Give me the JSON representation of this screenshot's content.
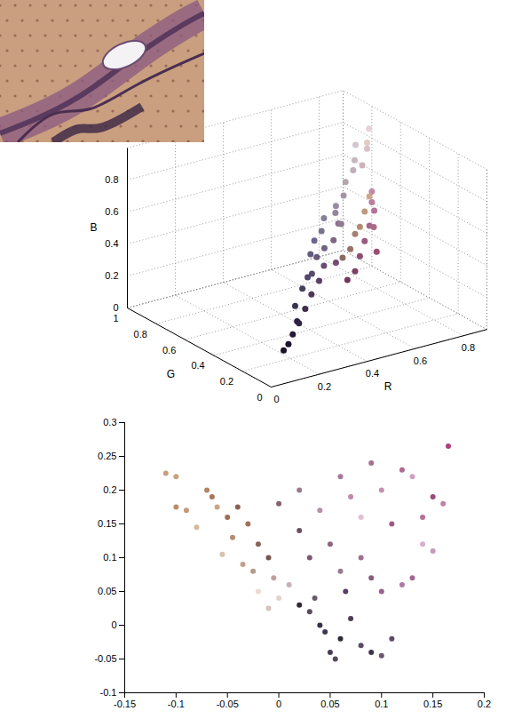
{
  "chart_data": [
    {
      "type": "scatter3d",
      "x_label": "R",
      "y_label": "G",
      "z_label": "B",
      "xlim": [
        0,
        0.9
      ],
      "xticks": [
        0,
        0.2,
        0.4,
        0.6,
        0.8
      ],
      "ylim": [
        0,
        1
      ],
      "yticks": [
        0,
        0.2,
        0.4,
        0.6,
        0.8,
        1
      ],
      "zlim": [
        0,
        1
      ],
      "zticks": [
        0,
        0.2,
        0.4,
        0.6,
        0.8
      ],
      "grid": true,
      "x": [
        0.12,
        0.15,
        0.2,
        0.1,
        0.18,
        0.25,
        0.22,
        0.3,
        0.28,
        0.35,
        0.4,
        0.45,
        0.38,
        0.5,
        0.48,
        0.55,
        0.42,
        0.52,
        0.55,
        0.6,
        0.65,
        0.7,
        0.62,
        0.72,
        0.75,
        0.5,
        0.45,
        0.68,
        0.6,
        0.7,
        0.75,
        0.8,
        0.55,
        0.65,
        0.8,
        0.85,
        0.82,
        0.88,
        0.78,
        0.9,
        0.7,
        0.75,
        0.6,
        0.65,
        0.58,
        0.35,
        0.32,
        0.4,
        0.45,
        0.58
      ],
      "y": [
        0.08,
        0.1,
        0.14,
        0.08,
        0.12,
        0.18,
        0.2,
        0.22,
        0.25,
        0.25,
        0.35,
        0.38,
        0.36,
        0.4,
        0.45,
        0.45,
        0.4,
        0.5,
        0.3,
        0.35,
        0.4,
        0.45,
        0.3,
        0.5,
        0.55,
        0.25,
        0.22,
        0.42,
        0.45,
        0.55,
        0.6,
        0.65,
        0.42,
        0.5,
        0.7,
        0.75,
        0.78,
        0.8,
        0.72,
        0.82,
        0.65,
        0.68,
        0.55,
        0.58,
        0.52,
        0.3,
        0.28,
        0.3,
        0.3,
        0.48
      ],
      "z": [
        0.18,
        0.22,
        0.25,
        0.15,
        0.28,
        0.3,
        0.32,
        0.35,
        0.38,
        0.4,
        0.48,
        0.5,
        0.5,
        0.52,
        0.56,
        0.58,
        0.55,
        0.6,
        0.45,
        0.5,
        0.55,
        0.6,
        0.45,
        0.62,
        0.65,
        0.4,
        0.38,
        0.52,
        0.4,
        0.45,
        0.5,
        0.55,
        0.38,
        0.45,
        0.72,
        0.78,
        0.8,
        0.78,
        0.75,
        0.85,
        0.68,
        0.72,
        0.62,
        0.65,
        0.6,
        0.42,
        0.42,
        0.45,
        0.45,
        0.55
      ]
    },
    {
      "type": "scatter",
      "xlim": [
        -0.15,
        0.2
      ],
      "xticks": [
        -0.15,
        -0.1,
        -0.05,
        0,
        0.05,
        0.1,
        0.15,
        0.2
      ],
      "ylim": [
        -0.1,
        0.3
      ],
      "yticks": [
        -0.1,
        -0.05,
        0,
        0.05,
        0.1,
        0.15,
        0.2,
        0.25,
        0.3
      ],
      "grid": false,
      "x": [
        -0.11,
        -0.1,
        -0.1,
        -0.09,
        -0.07,
        -0.065,
        -0.06,
        -0.08,
        -0.05,
        -0.045,
        -0.04,
        -0.03,
        -0.055,
        -0.035,
        -0.02,
        -0.025,
        -0.01,
        -0.02,
        0,
        -0.01,
        0.01,
        -0.005,
        0.03,
        0.04,
        0.045,
        0.05,
        0.055,
        0.06,
        0.07,
        0.08,
        0.09,
        0.1,
        0.035,
        0.02,
        0.065,
        0.11,
        0.03,
        0.05,
        0.02,
        0.06,
        0.08,
        0.09,
        0.1,
        0.12,
        0.13,
        0.04,
        0.07,
        0.09,
        0.1,
        0.12,
        0.13,
        0.14,
        0.15,
        0.16,
        0.165,
        0.11,
        0.14,
        0.15,
        0.08,
        0.06,
        0.02,
        0
      ],
      "y": [
        0.225,
        0.22,
        0.175,
        0.17,
        0.2,
        0.19,
        0.175,
        0.145,
        0.16,
        0.13,
        0.175,
        0.15,
        0.105,
        0.09,
        0.12,
        0.08,
        0.1,
        0.05,
        0.04,
        0.025,
        0.06,
        0.07,
        0.02,
        0,
        -0.01,
        -0.04,
        -0.05,
        -0.02,
        0.01,
        -0.03,
        -0.04,
        -0.045,
        0.04,
        0.03,
        0.05,
        -0.02,
        0.1,
        0.12,
        0.14,
        0.08,
        0.1,
        0.07,
        0.05,
        0.06,
        0.07,
        0.17,
        0.19,
        0.24,
        0.2,
        0.23,
        0.22,
        0.16,
        0.19,
        0.18,
        0.265,
        0.15,
        0.12,
        0.11,
        0.16,
        0.22,
        0.2,
        0.18
      ],
      "colors": [
        "#c9a07a",
        "#c8a383",
        "#b88e6c",
        "#c49a78",
        "#b58566",
        "#a8765a",
        "#c9a585",
        "#d8b89a",
        "#9e6e55",
        "#b48c70",
        "#8d6250",
        "#a07058",
        "#d8c0aa",
        "#c2a089",
        "#8a6555",
        "#b59a8a",
        "#7a5550",
        "#ead9d5",
        "#e5d0d0",
        "#d8c0c0",
        "#c9b0b5",
        "#c0a0a0",
        "#5a4a5a",
        "#3a3045",
        "#40364c",
        "#4a3e55",
        "#55485c",
        "#302838",
        "#4e3c55",
        "#5c4a66",
        "#3e3448",
        "#685870",
        "#6a5a6a",
        "#302830",
        "#584060",
        "#604a68",
        "#7a5a70",
        "#8a6880",
        "#6a5060",
        "#9a7a90",
        "#a07090",
        "#8a5a80",
        "#9a6090",
        "#b07aa0",
        "#a06895",
        "#b890a8",
        "#c08aa8",
        "#a8708f",
        "#c890b0",
        "#b06890",
        "#d0a0c0",
        "#b87098",
        "#9a4a78",
        "#c080a8",
        "#b0407a",
        "#a05888",
        "#d8b0c8",
        "#c898b8",
        "#e0c0d0",
        "#a87898",
        "#9a7a8a",
        "#8a6070"
      ]
    }
  ]
}
